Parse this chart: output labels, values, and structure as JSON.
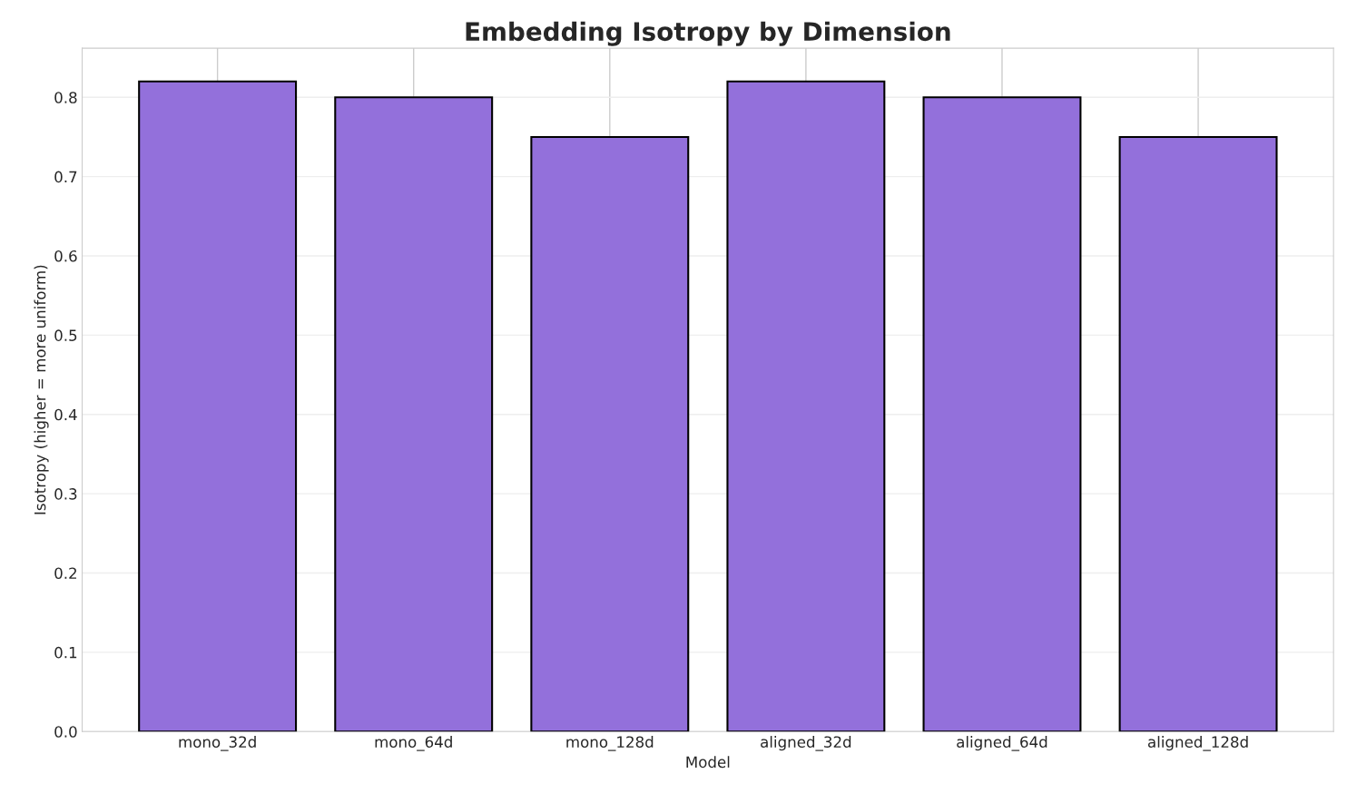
{
  "chart_data": {
    "type": "bar",
    "title": "Embedding Isotropy by Dimension",
    "xlabel": "Model",
    "ylabel": "Isotropy (higher = more uniform)",
    "categories": [
      "mono_32d",
      "mono_64d",
      "mono_128d",
      "aligned_32d",
      "aligned_64d",
      "aligned_128d"
    ],
    "values": [
      0.82,
      0.8,
      0.75,
      0.82,
      0.8,
      0.75
    ],
    "color": "#9370db",
    "ylim": [
      0,
      0.862
    ],
    "yticks": [
      {
        "value": 0,
        "label": "0.0"
      },
      0.1,
      0.2,
      0.3,
      0.4,
      0.5,
      0.6,
      0.7,
      0.8
    ],
    "grid": true
  }
}
